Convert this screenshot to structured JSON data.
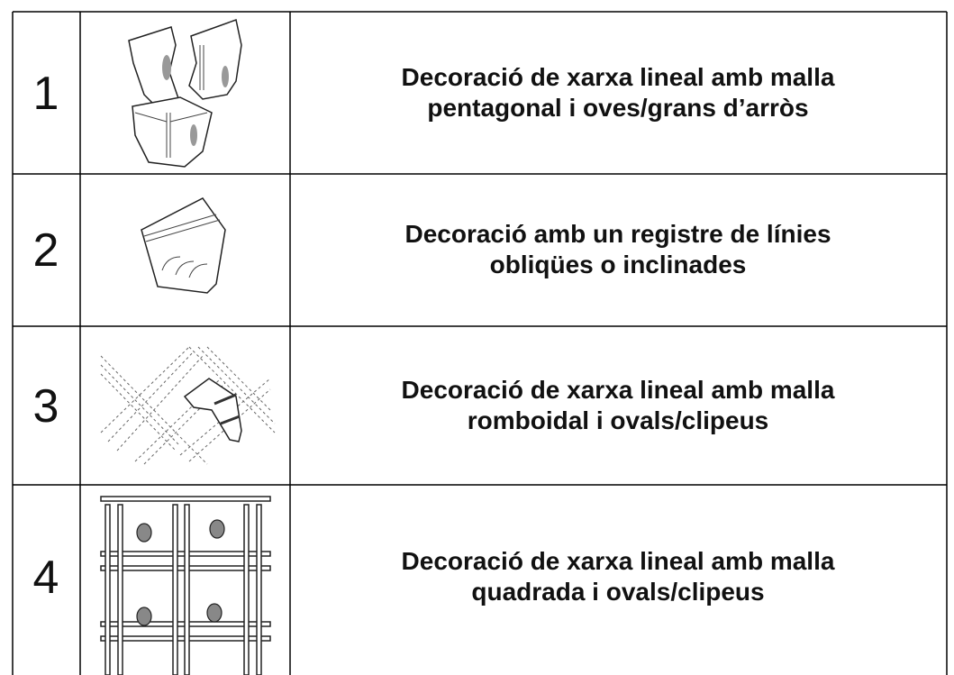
{
  "table": {
    "rows": [
      {
        "number": "1",
        "lines": [
          "Decoració de xarxa lineal amb malla",
          "pentagonal i oves/grans d’arròs"
        ]
      },
      {
        "number": "2",
        "lines": [
          "Decoració amb un registre de línies",
          "obliqües o inclinades"
        ]
      },
      {
        "number": "3",
        "lines": [
          "Decoració de xarxa lineal amb malla",
          "romboidal i ovals/clipeus"
        ]
      },
      {
        "number": "4",
        "lines": [
          "Decoració de xarxa lineal amb malla",
          "quadrada i ovals/clipeus"
        ]
      }
    ]
  }
}
